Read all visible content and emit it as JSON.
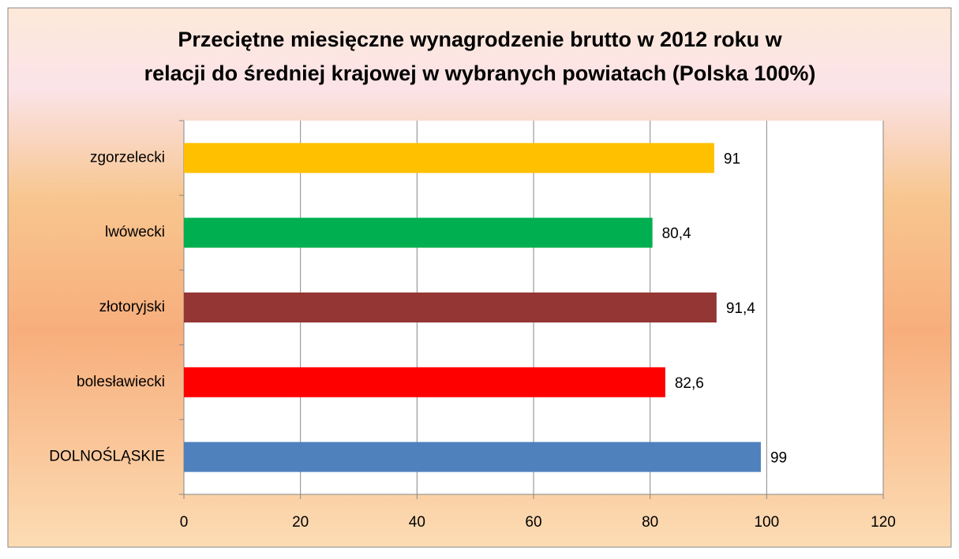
{
  "chart_data": {
    "type": "hbar",
    "title": [
      "Przeciętne miesięczne wynagrodzenie brutto w 2012 roku w",
      "relacji do średniej krajowej w wybranych powiatach (Polska 100%)"
    ],
    "categories": [
      "zgorzelecki",
      "lwówecki",
      "złotoryjski",
      "bolesławiecki",
      "DOLNOŚLĄSKIE"
    ],
    "values": [
      91,
      80.4,
      91.4,
      82.6,
      99
    ],
    "value_labels": [
      "91",
      "80,4",
      "91,4",
      "82,6",
      "99"
    ],
    "colors": [
      "#ffc000",
      "#00b050",
      "#943634",
      "#ff0000",
      "#4f81bd"
    ],
    "xlim": [
      0,
      120
    ],
    "xticks": [
      0,
      20,
      40,
      60,
      80,
      100,
      120
    ],
    "grid": true
  }
}
